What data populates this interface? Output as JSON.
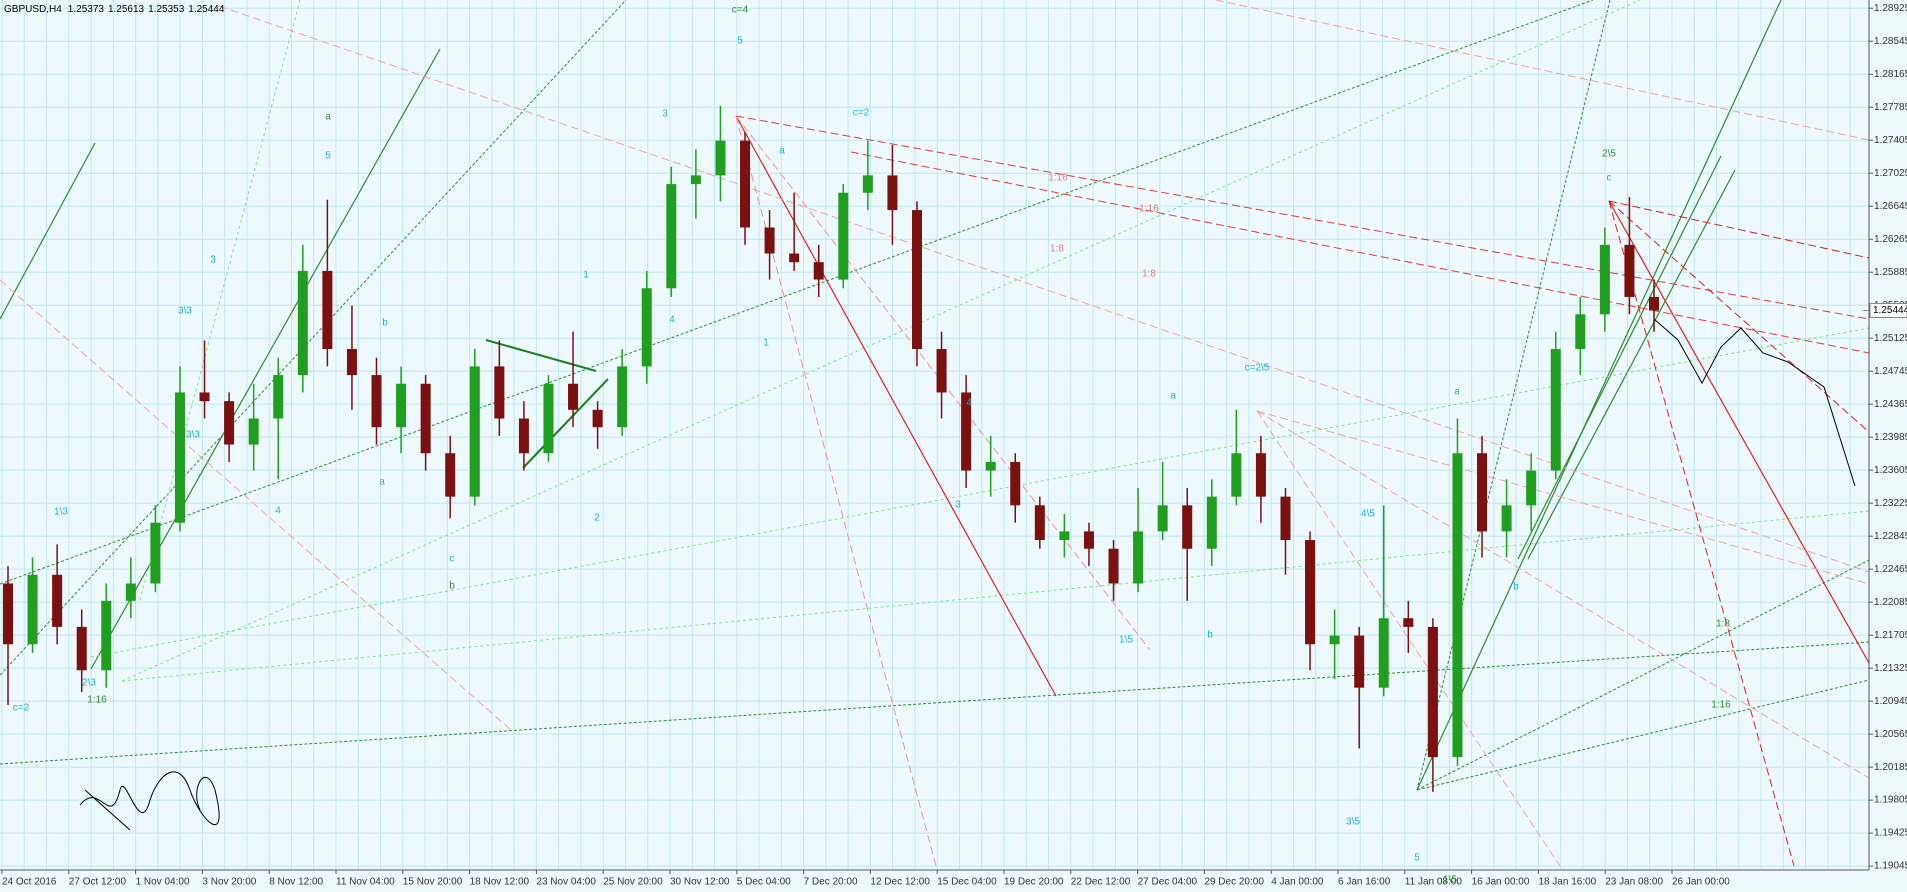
{
  "chart_data": {
    "type": "candlestick",
    "symbol": "GBPUSD,H4",
    "header_ohlc": [
      1.25373,
      1.25613,
      1.25353,
      1.25444
    ],
    "bid": 1.25444,
    "up_color": "#1f9e1f",
    "down_color": "#7a1010",
    "grid": true,
    "ylim": [
      1.19,
      1.2902
    ],
    "yticks": [
      1.19045,
      1.19425,
      1.19805,
      1.20185,
      1.20565,
      1.20945,
      1.21325,
      1.21705,
      1.22085,
      1.22465,
      1.22845,
      1.23225,
      1.23605,
      1.23985,
      1.24365,
      1.24745,
      1.25125,
      1.25505,
      1.25885,
      1.26265,
      1.26645,
      1.27025,
      1.27405,
      1.27785,
      1.28165,
      1.28545,
      1.28925
    ],
    "categories": [
      "24 Oct 2016",
      "27 Oct 12:00",
      "1 Nov 04:00",
      "3 Nov 20:00",
      "8 Nov 12:00",
      "11 Nov 04:00",
      "15 Nov 20:00",
      "18 Nov 12:00",
      "23 Nov 04:00",
      "25 Nov 20:00",
      "30 Nov 12:00",
      "5 Dec 04:00",
      "7 Dec 20:00",
      "12 Dec 12:00",
      "15 Dec 04:00",
      "19 Dec 20:00",
      "22 Dec 12:00",
      "27 Dec 04:00",
      "29 Dec 20:00",
      "4 Jan 00:00",
      "6 Jan 16:00",
      "11 Jan 08:00",
      "16 Jan 00:00",
      "18 Jan 16:00",
      "23 Jan 08:00",
      "26 Jan 00:00"
    ],
    "ohlc": [
      [
        1.223,
        1.225,
        1.209,
        1.216
      ],
      [
        1.216,
        1.226,
        1.215,
        1.224
      ],
      [
        1.224,
        1.2275,
        1.216,
        1.218
      ],
      [
        1.218,
        1.22,
        1.2105,
        1.213
      ],
      [
        1.213,
        1.223,
        1.211,
        1.221
      ],
      [
        1.221,
        1.226,
        1.219,
        1.223
      ],
      [
        1.223,
        1.232,
        1.222,
        1.23
      ],
      [
        1.23,
        1.248,
        1.229,
        1.245
      ],
      [
        1.245,
        1.251,
        1.242,
        1.244
      ],
      [
        1.244,
        1.245,
        1.237,
        1.239
      ],
      [
        1.239,
        1.246,
        1.236,
        1.242
      ],
      [
        1.242,
        1.249,
        1.235,
        1.247
      ],
      [
        1.247,
        1.262,
        1.245,
        1.259
      ],
      [
        1.259,
        1.2672,
        1.248,
        1.25
      ],
      [
        1.25,
        1.255,
        1.243,
        1.247
      ],
      [
        1.247,
        1.249,
        1.239,
        1.241
      ],
      [
        1.241,
        1.248,
        1.238,
        1.246
      ],
      [
        1.246,
        1.247,
        1.236,
        1.238
      ],
      [
        1.238,
        1.24,
        1.2305,
        1.233
      ],
      [
        1.233,
        1.25,
        1.232,
        1.248
      ],
      [
        1.248,
        1.251,
        1.24,
        1.242
      ],
      [
        1.242,
        1.244,
        1.236,
        1.238
      ],
      [
        1.238,
        1.247,
        1.237,
        1.246
      ],
      [
        1.246,
        1.252,
        1.241,
        1.243
      ],
      [
        1.243,
        1.244,
        1.2385,
        1.241
      ],
      [
        1.241,
        1.25,
        1.24,
        1.248
      ],
      [
        1.248,
        1.259,
        1.246,
        1.257
      ],
      [
        1.257,
        1.271,
        1.256,
        1.269
      ],
      [
        1.269,
        1.273,
        1.265,
        1.27
      ],
      [
        1.27,
        1.278,
        1.267,
        1.274
      ],
      [
        1.274,
        1.275,
        1.262,
        1.264
      ],
      [
        1.264,
        1.266,
        1.258,
        1.261
      ],
      [
        1.261,
        1.268,
        1.259,
        1.26
      ],
      [
        1.26,
        1.262,
        1.256,
        1.258
      ],
      [
        1.258,
        1.269,
        1.257,
        1.268
      ],
      [
        1.268,
        1.274,
        1.266,
        1.27
      ],
      [
        1.27,
        1.2735,
        1.262,
        1.266
      ],
      [
        1.266,
        1.267,
        1.248,
        1.25
      ],
      [
        1.25,
        1.252,
        1.242,
        1.245
      ],
      [
        1.245,
        1.247,
        1.234,
        1.236
      ],
      [
        1.236,
        1.24,
        1.233,
        1.237
      ],
      [
        1.237,
        1.238,
        1.23,
        1.232
      ],
      [
        1.232,
        1.233,
        1.227,
        1.228
      ],
      [
        1.228,
        1.231,
        1.226,
        1.229
      ],
      [
        1.229,
        1.23,
        1.225,
        1.227
      ],
      [
        1.227,
        1.228,
        1.221,
        1.223
      ],
      [
        1.223,
        1.234,
        1.222,
        1.229
      ],
      [
        1.229,
        1.237,
        1.228,
        1.232
      ],
      [
        1.232,
        1.234,
        1.221,
        1.227
      ],
      [
        1.227,
        1.235,
        1.225,
        1.233
      ],
      [
        1.233,
        1.243,
        1.232,
        1.238
      ],
      [
        1.238,
        1.24,
        1.23,
        1.233
      ],
      [
        1.233,
        1.234,
        1.224,
        1.228
      ],
      [
        1.228,
        1.229,
        1.213,
        1.216
      ],
      [
        1.216,
        1.22,
        1.212,
        1.217
      ],
      [
        1.217,
        1.218,
        1.204,
        1.211
      ],
      [
        1.211,
        1.232,
        1.21,
        1.219
      ],
      [
        1.219,
        1.221,
        1.215,
        1.218
      ],
      [
        1.218,
        1.219,
        1.199,
        1.203
      ],
      [
        1.203,
        1.242,
        1.202,
        1.238
      ],
      [
        1.238,
        1.24,
        1.226,
        1.229
      ],
      [
        1.229,
        1.235,
        1.226,
        1.232
      ],
      [
        1.232,
        1.238,
        1.229,
        1.236
      ],
      [
        1.236,
        1.252,
        1.235,
        1.25
      ],
      [
        1.25,
        1.256,
        1.247,
        1.254
      ],
      [
        1.254,
        1.264,
        1.252,
        1.262
      ],
      [
        1.262,
        1.2675,
        1.254,
        1.256
      ],
      [
        1.256,
        1.258,
        1.252,
        1.25444
      ]
    ],
    "annotations": [
      {
        "text": "c=4",
        "color": "#2e8b2e"
      },
      {
        "text": "5",
        "color": "#1ab0c8"
      },
      {
        "text": "a",
        "color": "#2e8b2e"
      },
      {
        "text": "5",
        "color": "#1ab0c8"
      },
      {
        "text": "3",
        "color": "#1ab0c8"
      },
      {
        "text": "3\\3",
        "color": "#1ab0c8"
      },
      {
        "text": "3\\3",
        "color": "#1ab0c8"
      },
      {
        "text": "4",
        "color": "#1ab0c8"
      },
      {
        "text": "1\\3",
        "color": "#1ab0c8"
      },
      {
        "text": "2\\3",
        "color": "#1ab0c8"
      },
      {
        "text": "c=2",
        "color": "#1ab0c8"
      },
      {
        "text": "b",
        "color": "#2e8b2e"
      },
      {
        "text": "c",
        "color": "#1ab0c8"
      },
      {
        "text": "b",
        "color": "#1ab0c8"
      },
      {
        "text": "a",
        "color": "#1ab0c8"
      },
      {
        "text": "1",
        "color": "#1ab0c8"
      },
      {
        "text": "2",
        "color": "#1ab0c8"
      },
      {
        "text": "3",
        "color": "#1ab0c8"
      },
      {
        "text": "4",
        "color": "#1ab0c8"
      },
      {
        "text": "a",
        "color": "#1ab0c8"
      },
      {
        "text": "1",
        "color": "#1ab0c8"
      },
      {
        "text": "c=2",
        "color": "#1ab0c8"
      },
      {
        "text": "4",
        "color": "#1ab0c8"
      },
      {
        "text": "3",
        "color": "#1ab0c8"
      },
      {
        "text": "c=2\\5",
        "color": "#1ab0c8"
      },
      {
        "text": "a",
        "color": "#1ab0c8"
      },
      {
        "text": "1\\5",
        "color": "#1ab0c8"
      },
      {
        "text": "b",
        "color": "#1ab0c8"
      },
      {
        "text": "4\\5",
        "color": "#1ab0c8"
      },
      {
        "text": "3\\5",
        "color": "#1ab0c8"
      },
      {
        "text": "5",
        "color": "#1ab0c8"
      },
      {
        "text": "1\\5",
        "color": "#2e8b2e"
      },
      {
        "text": "a",
        "color": "#1ab0c8"
      },
      {
        "text": "b",
        "color": "#1ab0c8"
      },
      {
        "text": "2\\5",
        "color": "#2e8b2e"
      },
      {
        "text": "c",
        "color": "#1ab0c8"
      },
      {
        "text": "1:16",
        "color": "#e07a7a"
      },
      {
        "text": "1:8",
        "color": "#e07a7a"
      },
      {
        "text": "1:8",
        "color": "#e07a7a"
      },
      {
        "text": "1:16",
        "color": "#e07a7a"
      },
      {
        "text": "1:16",
        "color": "#2e8b2e"
      },
      {
        "text": "1:8",
        "color": "#2e8b2e"
      },
      {
        "text": "1:16",
        "color": "#2e8b2e"
      }
    ]
  }
}
